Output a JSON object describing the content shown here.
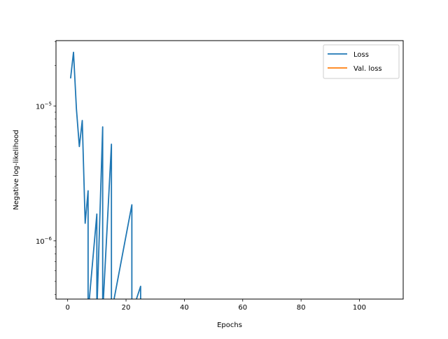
{
  "chart_data": {
    "type": "line",
    "title": "",
    "xlabel": "Epochs",
    "ylabel": "Negative log-likelihood",
    "xlim": [
      -4,
      115
    ],
    "ylim": [
      3.7e-07,
      3.05e-05
    ],
    "yscale": "log",
    "x_ticks": [
      {
        "value": 0,
        "label": "0"
      },
      {
        "value": 20,
        "label": "20"
      },
      {
        "value": 40,
        "label": "40"
      },
      {
        "value": 60,
        "label": "60"
      },
      {
        "value": 80,
        "label": "80"
      },
      {
        "value": 100,
        "label": "100"
      }
    ],
    "y_ticks": [
      {
        "value": 1e-06,
        "base": "10",
        "exp": "−6"
      },
      {
        "value": 1e-05,
        "base": "10",
        "exp": "−5"
      }
    ],
    "y_minor_ticks": [
      4e-07,
      5e-07,
      6e-07,
      7e-07,
      8e-07,
      9e-07,
      2e-06,
      3e-06,
      4e-06,
      5e-06,
      6e-06,
      7e-06,
      8e-06,
      9e-06,
      2e-05,
      3e-05
    ],
    "grid": false,
    "legend_position": "top-right",
    "series": [
      {
        "name": "Loss",
        "color": "#1f77b4",
        "points": [
          [
            1,
            1.6e-05
          ],
          [
            2,
            2.5e-05
          ],
          [
            3,
            9.5e-06
          ],
          [
            4,
            5e-06
          ],
          [
            5,
            7.8e-06
          ],
          [
            6,
            1.35e-06
          ],
          [
            7,
            2.35e-06
          ],
          [
            7,
            null
          ],
          [
            10,
            1.58e-06
          ],
          [
            10,
            null
          ],
          [
            12,
            7e-06
          ],
          [
            12,
            null
          ],
          [
            15,
            5.2e-06
          ],
          [
            15,
            null
          ],
          [
            22,
            1.85e-06
          ],
          [
            22,
            null
          ],
          [
            25,
            4.6e-07
          ],
          [
            25,
            null
          ]
        ]
      },
      {
        "name": "Val. loss",
        "color": "#ff7f0e",
        "points": []
      }
    ]
  }
}
